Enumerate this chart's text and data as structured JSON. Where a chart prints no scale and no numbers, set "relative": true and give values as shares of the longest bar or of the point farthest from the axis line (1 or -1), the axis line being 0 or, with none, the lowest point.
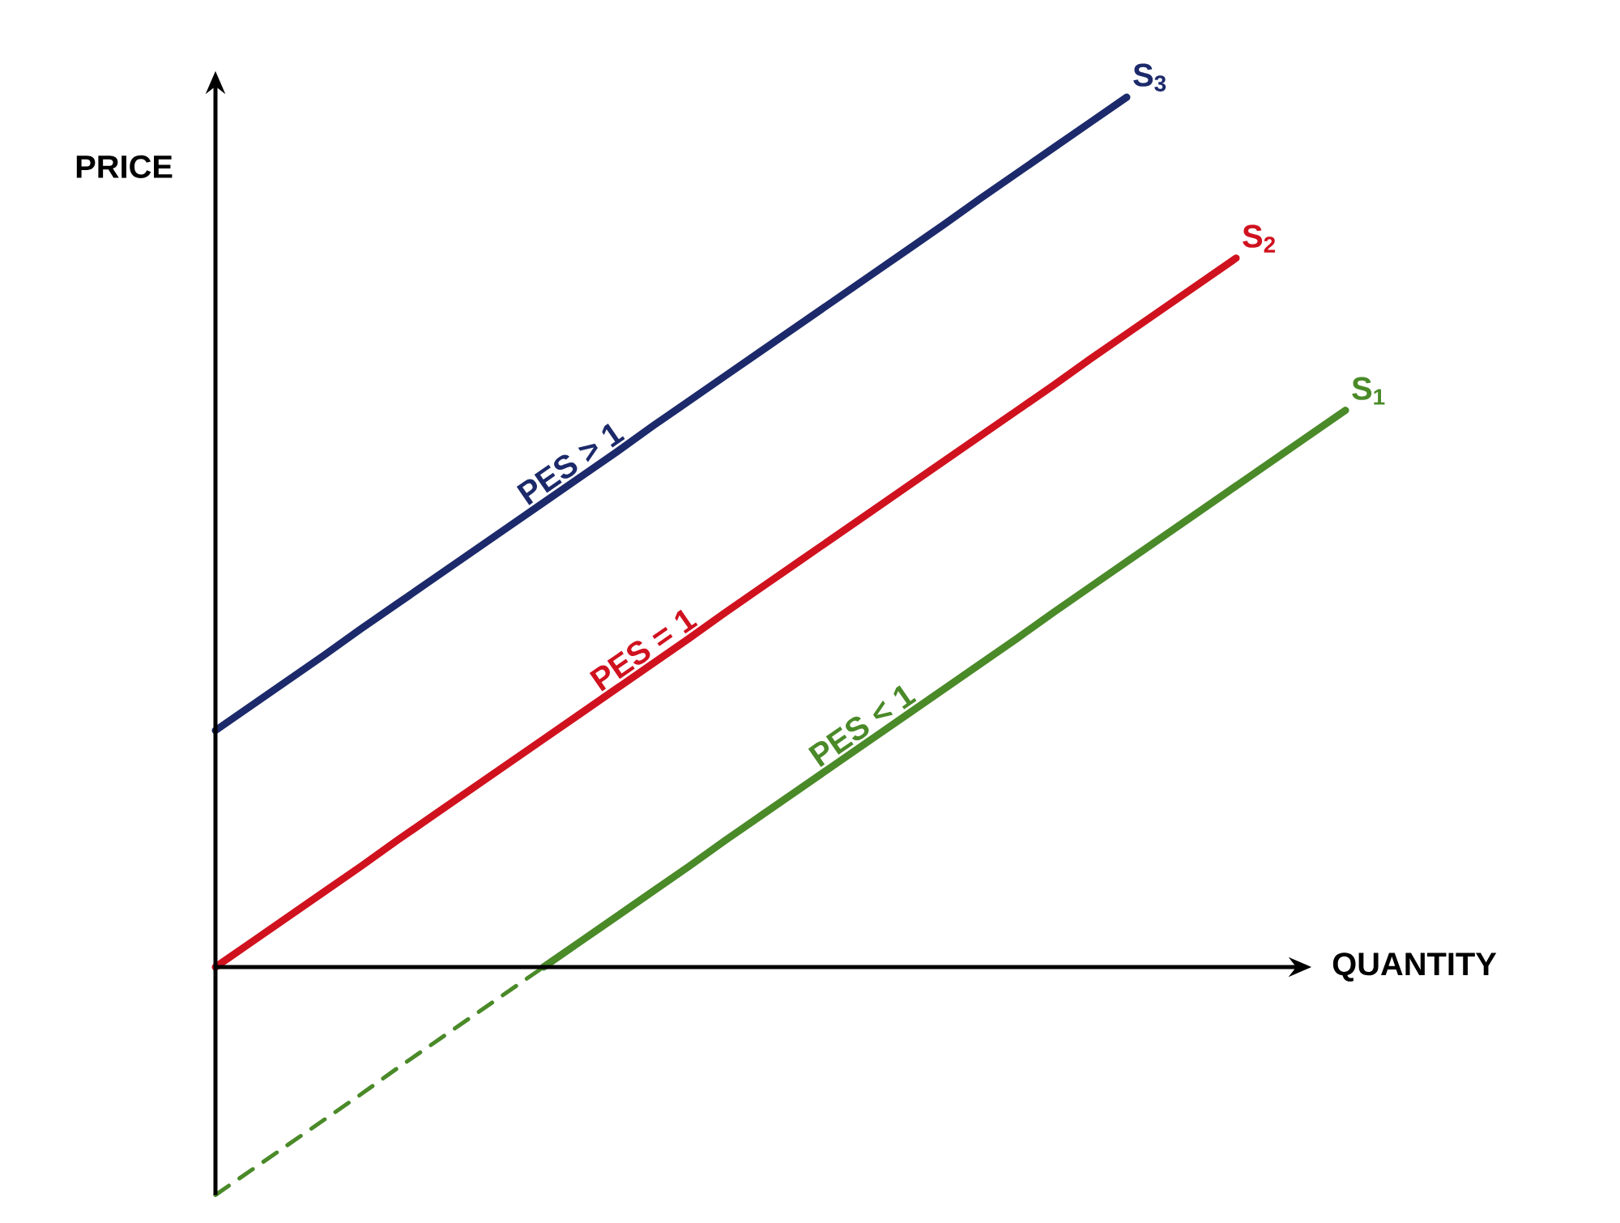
{
  "chart_data": {
    "type": "line",
    "relative": true,
    "xlabel": "QUANTITY",
    "ylabel": "PRICE",
    "categories": [
      null,
      null,
      null,
      null,
      null,
      null,
      null,
      null,
      null,
      null,
      null,
      null,
      null,
      null,
      null,
      null,
      null,
      null,
      null,
      null,
      null,
      null,
      null,
      null,
      null,
      null,
      null,
      null,
      null,
      null,
      null,
      null
    ],
    "series": [
      {
        "name": "S$_{3}$",
        "color": "#1c2a6b",
        "line_style": "solid",
        "values": [
          0.272,
          0.301,
          0.33,
          0.359,
          0.389,
          0.418,
          0.447,
          0.476,
          0.505,
          0.534,
          0.563,
          0.592,
          0.622,
          0.651,
          0.68,
          0.709,
          0.738,
          0.767,
          0.796,
          0.825,
          0.854,
          0.884,
          0.913,
          0.942,
          0.971,
          1.0,
          null,
          null,
          null,
          null,
          null,
          null
        ]
      },
      {
        "name": "S$_{2}$",
        "color": "#d0121f",
        "line_style": "solid",
        "values": [
          0,
          0.029,
          0.058,
          0.087,
          0.116,
          0.146,
          0.175,
          0.204,
          0.233,
          0.262,
          0.291,
          0.32,
          0.349,
          0.378,
          0.408,
          0.437,
          0.466,
          0.495,
          0.524,
          0.553,
          0.582,
          0.611,
          0.64,
          0.669,
          0.699,
          0.728,
          0.757,
          0.786,
          0.815,
          null,
          null,
          null
        ]
      },
      {
        "name": "S$_{1}$",
        "color": "#4a8a28",
        "line_style": "solid",
        "values": [
          null,
          null,
          null,
          null,
          null,
          null,
          null,
          null,
          null,
          0,
          0.029,
          0.058,
          0.087,
          0.116,
          0.146,
          0.175,
          0.204,
          0.233,
          0.262,
          0.291,
          0.32,
          0.349,
          0.378,
          0.408,
          0.437,
          0.466,
          0.495,
          0.524,
          0.553,
          0.582,
          0.611,
          0.64
        ]
      },
      {
        "color": "#4a8a28",
        "line_style": "dashed",
        "values": [
          -0.262,
          -0.233,
          -0.204,
          -0.175,
          -0.146,
          -0.116,
          -0.087,
          -0.058,
          -0.029,
          0,
          null,
          null,
          null,
          null,
          null,
          null,
          null,
          null,
          null,
          null,
          null,
          null,
          null,
          null,
          null,
          null,
          null,
          null,
          null,
          null,
          null,
          null
        ]
      }
    ],
    "annotations": [
      "PES > 1",
      "PES = 1",
      "PES < 1"
    ]
  }
}
